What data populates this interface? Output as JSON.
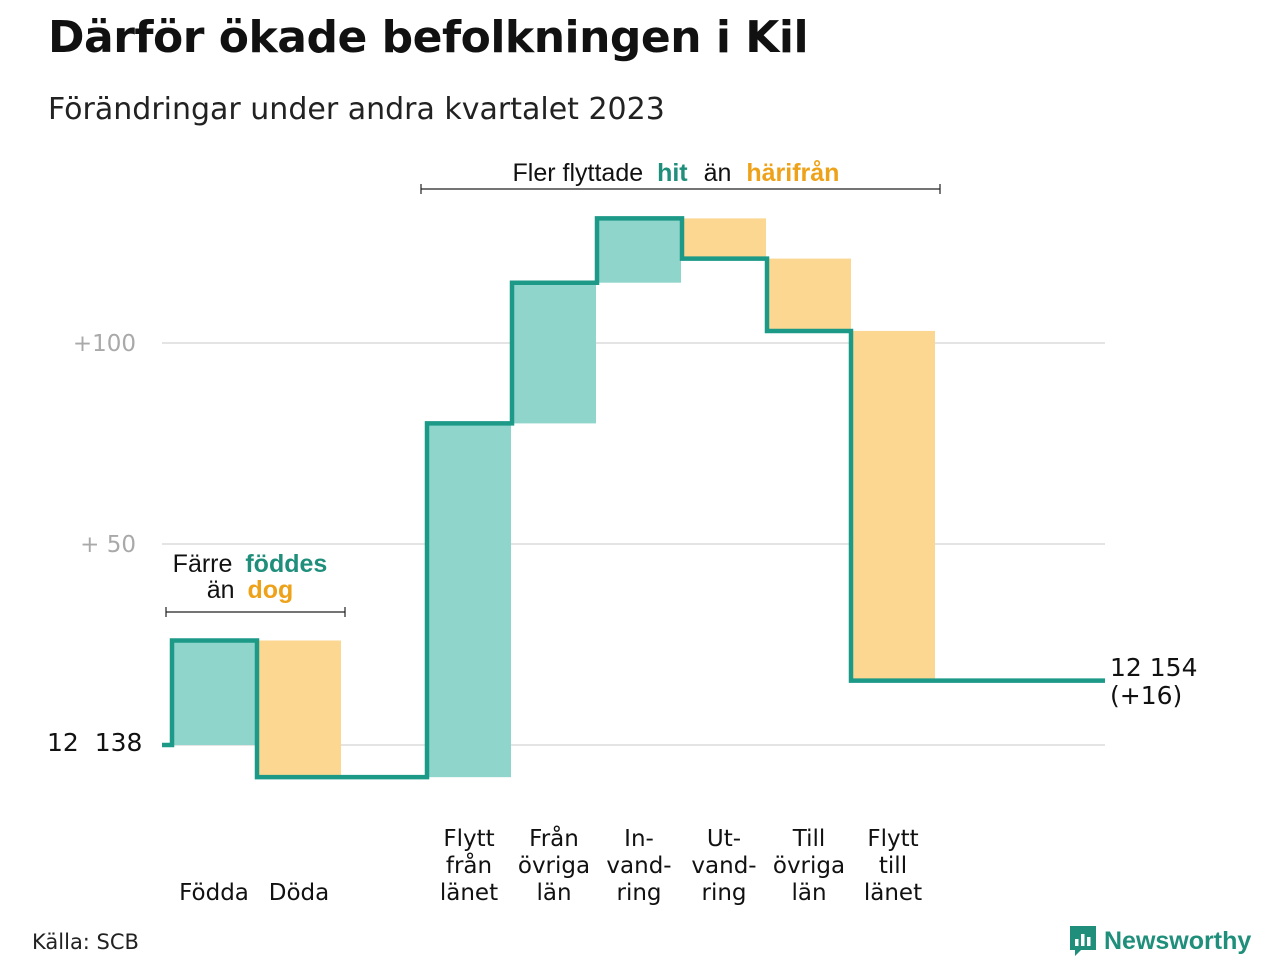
{
  "title": "Därför ökade befolkningen i Kil",
  "subtitle": "Förändringar under andra kvartalet 2023",
  "source": "Källa: SCB",
  "brand": "Newsworthy",
  "colors": {
    "increase": "#8fd5cb",
    "decrease": "#fbd792",
    "line": "#1c9a87",
    "grid": "#e4e4e4",
    "tick": "#a9a9a9",
    "accent_teal": "#1f8f7b",
    "accent_orange": "#eea21a"
  },
  "annotations": {
    "births": {
      "prefix": "Färre",
      "teal": "föddes",
      "line2_prefix": "än",
      "orange": "dog"
    },
    "moves": {
      "prefix": "Fler flyttade",
      "teal": "hit",
      "mid": "än",
      "orange": "härifrån"
    }
  },
  "start_label": "12  138",
  "end_label": {
    "line1": "12 154",
    "line2": "(+16)"
  },
  "chart_data": {
    "type": "waterfall",
    "title": "Därför ökade befolkningen i Kil",
    "subtitle": "Förändringar under andra kvartalet 2023",
    "start_value": 12138,
    "end_value": 12154,
    "net_change": 16,
    "y_ticks": [
      {
        "value": 0,
        "label": ""
      },
      {
        "value": 50,
        "label": "+  50"
      },
      {
        "value": 100,
        "label": "+100"
      }
    ],
    "ylim": [
      -8,
      132
    ],
    "grid": true,
    "steps": [
      {
        "label": [
          "Födda"
        ],
        "change": 26
      },
      {
        "label": [
          "Döda"
        ],
        "change": -34
      },
      {
        "label": [
          "Flytt",
          "från",
          "länet"
        ],
        "change": 88
      },
      {
        "label": [
          "Från",
          "övriga",
          "län"
        ],
        "change": 35
      },
      {
        "label": [
          "In-",
          "vand-",
          "ring"
        ],
        "change": 16
      },
      {
        "label": [
          "Ut-",
          "vand-",
          "ring"
        ],
        "change": -10
      },
      {
        "label": [
          "Till",
          "övriga",
          "län"
        ],
        "change": -18
      },
      {
        "label": [
          "Flytt",
          "till",
          "länet"
        ],
        "change": -87
      }
    ]
  }
}
